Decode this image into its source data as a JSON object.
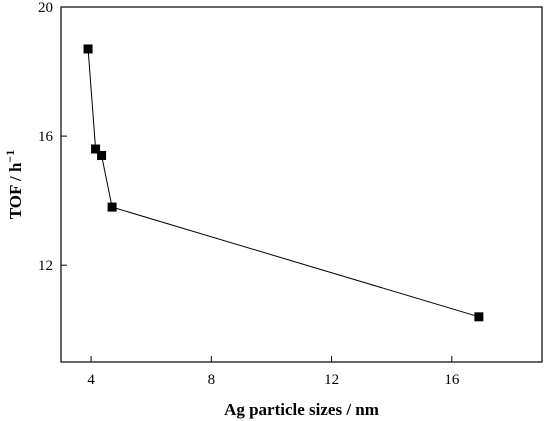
{
  "chart_data": {
    "type": "line",
    "title": "",
    "xlabel": "Ag particle sizes / nm",
    "ylabel_main": "TOF / h",
    "ylabel_sup": "−1",
    "xlim": [
      3,
      19
    ],
    "ylim": [
      9,
      20
    ],
    "xticks": [
      4,
      8,
      12,
      16
    ],
    "yticks": [
      12,
      16,
      20
    ],
    "grid": false,
    "legend": "none",
    "marker": "square",
    "series": [
      {
        "x": [
          3.9,
          4.15,
          4.35,
          4.7,
          16.9
        ],
        "y": [
          18.7,
          15.6,
          15.4,
          13.8,
          10.4
        ]
      }
    ]
  }
}
